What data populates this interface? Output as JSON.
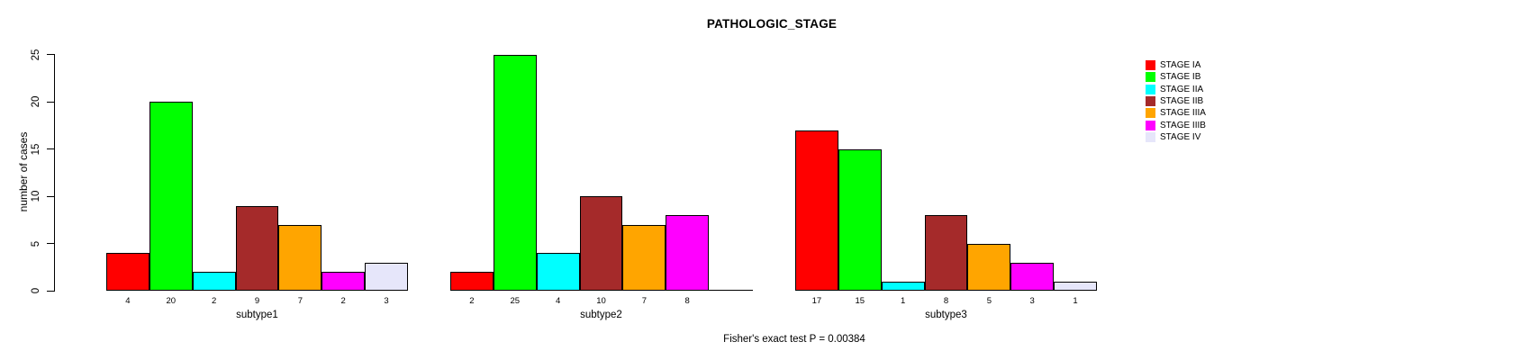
{
  "title": "PATHOLOGIC_STAGE",
  "footer": "Fisher's exact test P = 0.00384",
  "chart_data": {
    "type": "bar",
    "title": "PATHOLOGIC_STAGE",
    "xlabel": "",
    "ylabel": "number of cases",
    "ylim": [
      0,
      25
    ],
    "yticks": [
      0,
      5,
      10,
      15,
      20,
      25
    ],
    "grid": false,
    "legend_position": "right",
    "series": [
      {
        "name": "STAGE IA",
        "color": "#FF0000",
        "values": [
          4,
          2,
          17
        ]
      },
      {
        "name": "STAGE IB",
        "color": "#00FF00",
        "values": [
          20,
          25,
          15
        ]
      },
      {
        "name": "STAGE IIA",
        "color": "#00FFFF",
        "values": [
          2,
          4,
          1
        ]
      },
      {
        "name": "STAGE IIB",
        "color": "#A52A2A",
        "values": [
          9,
          10,
          8
        ]
      },
      {
        "name": "STAGE IIIA",
        "color": "#FFA500",
        "values": [
          7,
          7,
          5
        ]
      },
      {
        "name": "STAGE IIIB",
        "color": "#FF00FF",
        "values": [
          2,
          8,
          3
        ]
      },
      {
        "name": "STAGE IV",
        "color": "#E6E6FA",
        "values": [
          3,
          0,
          1
        ]
      }
    ],
    "groups": [
      {
        "label": "subtype1",
        "values": [
          4,
          20,
          2,
          9,
          7,
          2,
          3
        ]
      },
      {
        "label": "subtype2",
        "values": [
          2,
          25,
          4,
          10,
          7,
          8,
          0
        ]
      },
      {
        "label": "subtype3",
        "values": [
          17,
          15,
          1,
          8,
          5,
          3,
          1
        ]
      }
    ],
    "annotation": "Fisher's exact test P = 0.00384"
  }
}
